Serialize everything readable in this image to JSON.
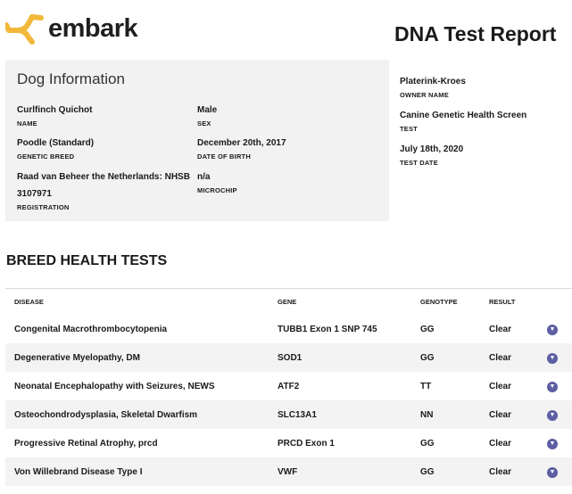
{
  "brand": {
    "name": "embark",
    "color": "#f3b83a"
  },
  "report_title": "DNA Test Report",
  "dog_info": {
    "title": "Dog Information",
    "fields": [
      {
        "value": "Curlfinch Quichot",
        "label": "NAME"
      },
      {
        "value": "Male",
        "label": "SEX"
      },
      {
        "value": "Poodle (Standard)",
        "label": "GENETIC BREED"
      },
      {
        "value": "December 20th, 2017",
        "label": "DATE OF BIRTH"
      },
      {
        "value": "Raad van Beheer the Netherlands: NHSB 3107971",
        "label": "REGISTRATION"
      },
      {
        "value": "n/a",
        "label": "MICROCHIP"
      }
    ]
  },
  "report_info": [
    {
      "value": "Platerink-Kroes",
      "label": "OWNER NAME"
    },
    {
      "value": "Canine Genetic Health Screen",
      "label": "TEST"
    },
    {
      "value": "July 18th, 2020",
      "label": "TEST DATE"
    }
  ],
  "section_title": "BREED HEALTH TESTS",
  "table": {
    "headers": [
      "DISEASE",
      "GENE",
      "GENOTYPE",
      "RESULT"
    ],
    "rows": [
      [
        "Congenital Macrothrombocytopenia",
        "TUBB1 Exon 1 SNP 745",
        "GG",
        "Clear"
      ],
      [
        "Degenerative Myelopathy, DM",
        "SOD1",
        "GG",
        "Clear"
      ],
      [
        "Neonatal Encephalopathy with Seizures, NEWS",
        "ATF2",
        "TT",
        "Clear"
      ],
      [
        "Osteochondrodysplasia, Skeletal Dwarfism",
        "SLC13A1",
        "NN",
        "Clear"
      ],
      [
        "Progressive Retinal Atrophy, prcd",
        "PRCD Exon 1",
        "GG",
        "Clear"
      ],
      [
        "Von Willebrand Disease Type I",
        "VWF",
        "GG",
        "Clear"
      ]
    ]
  },
  "icons": {
    "result": "shield-icon",
    "shield_color": "#5d5ea3"
  }
}
